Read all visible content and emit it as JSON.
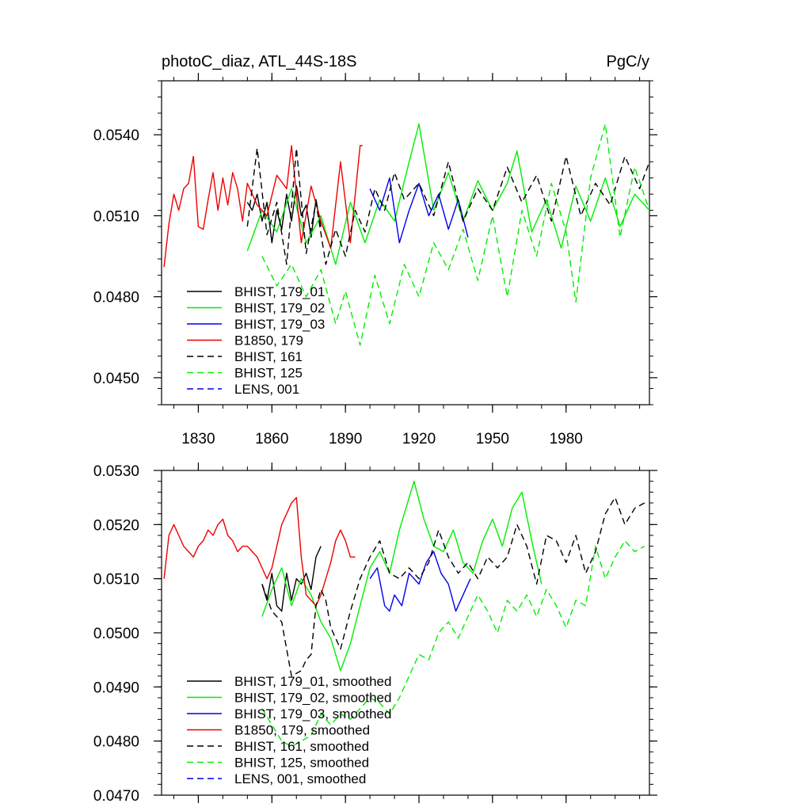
{
  "chart_data": [
    {
      "type": "line",
      "title_left": "photoC_diaz, ATL_44S-18S",
      "title_right": "PgC/y",
      "xlabel": "",
      "ylabel": "",
      "xlim": [
        1815,
        2014
      ],
      "ylim": [
        0.044,
        0.056
      ],
      "xticks": [
        1830,
        1860,
        1890,
        1920,
        1950,
        1980
      ],
      "yticks": [
        0.045,
        0.048,
        0.051,
        0.054
      ],
      "ytick_labels": [
        "0.0450",
        "0.0480",
        "0.0510",
        "0.0540"
      ],
      "xtick_labels": [
        "1830",
        "1860",
        "1890",
        "1920",
        "1950",
        "1980"
      ],
      "legend_location": "bottom-left",
      "series": [
        {
          "name": "BHIST, 179_01",
          "color": "#000000",
          "dash": false,
          "x": [
            1850,
            1852,
            1854,
            1856,
            1858,
            1860,
            1862,
            1864,
            1866,
            1868,
            1870,
            1872,
            1874,
            1876,
            1878,
            1880
          ],
          "y": [
            0.0515,
            0.0512,
            0.0518,
            0.0508,
            0.0515,
            0.05,
            0.0512,
            0.0505,
            0.0518,
            0.0508,
            0.0521,
            0.051,
            0.0514,
            0.0502,
            0.0516,
            0.0506
          ]
        },
        {
          "name": "BHIST, 179_02",
          "color": "#00ee00",
          "dash": false,
          "x": [
            1850,
            1856,
            1862,
            1868,
            1874,
            1880,
            1886,
            1892,
            1898,
            1904,
            1910,
            1916,
            1920,
            1926,
            1932,
            1938,
            1944,
            1950,
            1956,
            1960,
            1966,
            1972,
            1978,
            1984,
            1990,
            1996,
            2002,
            2008,
            2014
          ],
          "y": [
            0.0497,
            0.0512,
            0.0504,
            0.052,
            0.05,
            0.051,
            0.0492,
            0.0515,
            0.05,
            0.0516,
            0.0508,
            0.053,
            0.0544,
            0.0512,
            0.0526,
            0.0508,
            0.0523,
            0.0512,
            0.0522,
            0.0534,
            0.0504,
            0.0516,
            0.0498,
            0.0521,
            0.0508,
            0.0524,
            0.0506,
            0.0518,
            0.0512
          ]
        },
        {
          "name": "BHIST, 179_03",
          "color": "#0000ee",
          "dash": false,
          "x": [
            1900,
            1904,
            1908,
            1912,
            1916,
            1920,
            1924,
            1928,
            1932,
            1936,
            1940
          ],
          "y": [
            0.052,
            0.0512,
            0.0524,
            0.05,
            0.0512,
            0.0522,
            0.051,
            0.0518,
            0.0505,
            0.0516,
            0.0502
          ]
        },
        {
          "name": "B1850, 179",
          "color": "#ee0000",
          "dash": false,
          "x": [
            1816,
            1818,
            1820,
            1822,
            1824,
            1826,
            1828,
            1830,
            1832,
            1834,
            1836,
            1838,
            1840,
            1842,
            1844,
            1846,
            1848,
            1850,
            1854,
            1858,
            1862,
            1866,
            1868,
            1872,
            1876,
            1880,
            1884,
            1888,
            1892,
            1896,
            1897
          ],
          "y": [
            0.0491,
            0.0507,
            0.0518,
            0.0512,
            0.052,
            0.0522,
            0.0532,
            0.0506,
            0.0505,
            0.0516,
            0.0526,
            0.0512,
            0.0524,
            0.0514,
            0.0526,
            0.052,
            0.0508,
            0.0522,
            0.0514,
            0.051,
            0.0525,
            0.052,
            0.0536,
            0.05,
            0.0521,
            0.0508,
            0.0498,
            0.053,
            0.05,
            0.0536,
            0.0536
          ]
        },
        {
          "name": "BHIST, 161",
          "color": "#000000",
          "dash": true,
          "x": [
            1850,
            1854,
            1858,
            1862,
            1866,
            1870,
            1874,
            1878,
            1882,
            1886,
            1890,
            1894,
            1898,
            1902,
            1906,
            1910,
            1914,
            1920,
            1926,
            1932,
            1938,
            1944,
            1950,
            1956,
            1962,
            1968,
            1974,
            1980,
            1986,
            1992,
            1998,
            2004,
            2010,
            2014
          ],
          "y": [
            0.0506,
            0.0535,
            0.0503,
            0.0515,
            0.0492,
            0.0535,
            0.0496,
            0.0515,
            0.0492,
            0.0505,
            0.0495,
            0.0512,
            0.0504,
            0.052,
            0.0512,
            0.0526,
            0.0516,
            0.0522,
            0.051,
            0.053,
            0.0508,
            0.052,
            0.0512,
            0.0528,
            0.0515,
            0.0525,
            0.0508,
            0.0532,
            0.051,
            0.0522,
            0.0514,
            0.0532,
            0.052,
            0.053
          ]
        },
        {
          "name": "BHIST, 125",
          "color": "#00ee00",
          "dash": true,
          "x": [
            1856,
            1862,
            1868,
            1874,
            1880,
            1886,
            1890,
            1896,
            1902,
            1908,
            1914,
            1920,
            1926,
            1932,
            1938,
            1944,
            1950,
            1956,
            1962,
            1968,
            1974,
            1980,
            1984,
            1990,
            1996,
            2002,
            2008,
            2014
          ],
          "y": [
            0.0495,
            0.0484,
            0.0492,
            0.048,
            0.049,
            0.047,
            0.0482,
            0.0462,
            0.0488,
            0.047,
            0.0492,
            0.048,
            0.05,
            0.049,
            0.0505,
            0.0486,
            0.051,
            0.048,
            0.0512,
            0.0495,
            0.0522,
            0.0504,
            0.0478,
            0.0524,
            0.0544,
            0.0502,
            0.0528,
            0.0512
          ]
        },
        {
          "name": "LENS, 001",
          "color": "#0000ee",
          "dash": true,
          "x": [],
          "y": []
        }
      ]
    },
    {
      "type": "line",
      "title_left": "",
      "title_right": "",
      "xlabel": "",
      "ylabel": "",
      "xlim": [
        1815,
        2014
      ],
      "ylim": [
        0.047,
        0.053
      ],
      "yticks": [
        0.047,
        0.048,
        0.049,
        0.05,
        0.051,
        0.052,
        0.053
      ],
      "ytick_labels": [
        "0.0470",
        "0.0480",
        "0.0490",
        "0.0500",
        "0.0510",
        "0.0520",
        "0.0530"
      ],
      "legend_location": "bottom-left",
      "series": [
        {
          "name": "BHIST, 179_01, smoothed",
          "color": "#000000",
          "dash": false,
          "x": [
            1856,
            1858,
            1860,
            1862,
            1864,
            1866,
            1868,
            1870,
            1872,
            1874,
            1876,
            1878,
            1880
          ],
          "y": [
            0.0509,
            0.0506,
            0.0511,
            0.0505,
            0.0504,
            0.0511,
            0.0506,
            0.051,
            0.0509,
            0.0511,
            0.0508,
            0.0514,
            0.0516
          ]
        },
        {
          "name": "BHIST, 179_02, smoothed",
          "color": "#00ee00",
          "dash": false,
          "x": [
            1856,
            1860,
            1864,
            1868,
            1872,
            1876,
            1880,
            1884,
            1888,
            1892,
            1896,
            1900,
            1904,
            1908,
            1912,
            1916,
            1918,
            1922,
            1926,
            1930,
            1934,
            1938,
            1942,
            1946,
            1950,
            1954,
            1958,
            1962,
            1966,
            1970
          ],
          "y": [
            0.0503,
            0.0508,
            0.0512,
            0.0505,
            0.051,
            0.0507,
            0.0502,
            0.0499,
            0.0493,
            0.0498,
            0.0505,
            0.0512,
            0.0515,
            0.0511,
            0.0519,
            0.0525,
            0.0528,
            0.0521,
            0.0516,
            0.0515,
            0.0519,
            0.0513,
            0.0511,
            0.0517,
            0.0521,
            0.0516,
            0.0523,
            0.0526,
            0.0517,
            0.0509
          ]
        },
        {
          "name": "BHIST, 179_03, smoothed",
          "color": "#0000ee",
          "dash": false,
          "x": [
            1900,
            1903,
            1906,
            1908,
            1910,
            1913,
            1916,
            1920,
            1923,
            1926,
            1929,
            1932,
            1935,
            1938,
            1941
          ],
          "y": [
            0.051,
            0.0512,
            0.0505,
            0.0504,
            0.0507,
            0.0505,
            0.0511,
            0.0509,
            0.0513,
            0.0515,
            0.0511,
            0.0509,
            0.0504,
            0.0507,
            0.051
          ]
        },
        {
          "name": "B1850, 179, smoothed",
          "color": "#ee0000",
          "dash": false,
          "x": [
            1816,
            1818,
            1820,
            1822,
            1824,
            1826,
            1828,
            1830,
            1832,
            1834,
            1836,
            1838,
            1840,
            1842,
            1844,
            1846,
            1848,
            1850,
            1852,
            1854,
            1856,
            1858,
            1860,
            1862,
            1864,
            1866,
            1868,
            1870,
            1872,
            1874,
            1876,
            1878,
            1880,
            1882,
            1884,
            1886,
            1888,
            1890,
            1892,
            1894
          ],
          "y": [
            0.051,
            0.0518,
            0.052,
            0.0518,
            0.0516,
            0.0515,
            0.0514,
            0.0516,
            0.0517,
            0.0519,
            0.0518,
            0.052,
            0.0521,
            0.0518,
            0.0517,
            0.0515,
            0.0516,
            0.0516,
            0.0515,
            0.0514,
            0.0512,
            0.051,
            0.0512,
            0.0516,
            0.052,
            0.0522,
            0.0524,
            0.0525,
            0.0514,
            0.0507,
            0.0506,
            0.0505,
            0.0507,
            0.051,
            0.0513,
            0.0517,
            0.0519,
            0.0517,
            0.0514,
            0.0514
          ]
        },
        {
          "name": "BHIST, 161, smoothed",
          "color": "#000000",
          "dash": true,
          "x": [
            1856,
            1860,
            1864,
            1868,
            1872,
            1874,
            1876,
            1878,
            1880,
            1882,
            1884,
            1888,
            1892,
            1896,
            1900,
            1904,
            1908,
            1912,
            1916,
            1920,
            1924,
            1928,
            1932,
            1936,
            1940,
            1944,
            1948,
            1952,
            1956,
            1960,
            1964,
            1968,
            1972,
            1976,
            1980,
            1984,
            1988,
            1992,
            1996,
            2000,
            2004,
            2008,
            2012
          ],
          "y": [
            0.0509,
            0.0504,
            0.0502,
            0.0492,
            0.0493,
            0.0495,
            0.0496,
            0.0505,
            0.0508,
            0.0506,
            0.0501,
            0.0497,
            0.0504,
            0.051,
            0.0514,
            0.0517,
            0.0511,
            0.051,
            0.0512,
            0.051,
            0.0513,
            0.0519,
            0.0514,
            0.0511,
            0.0513,
            0.051,
            0.0514,
            0.0512,
            0.0514,
            0.052,
            0.0516,
            0.0509,
            0.0518,
            0.0517,
            0.0513,
            0.0518,
            0.0511,
            0.0515,
            0.0522,
            0.0525,
            0.052,
            0.0523,
            0.0524
          ]
        },
        {
          "name": "BHIST, 125, smoothed",
          "color": "#00ee00",
          "dash": true,
          "x": [
            1856,
            1860,
            1864,
            1868,
            1872,
            1876,
            1880,
            1884,
            1888,
            1892,
            1896,
            1900,
            1904,
            1908,
            1912,
            1916,
            1920,
            1924,
            1928,
            1932,
            1936,
            1940,
            1944,
            1948,
            1952,
            1956,
            1960,
            1964,
            1968,
            1972,
            1976,
            1980,
            1984,
            1988,
            1992,
            1996,
            2000,
            2004,
            2008,
            2012
          ],
          "y": [
            0.0486,
            0.0483,
            0.048,
            0.0479,
            0.048,
            0.0481,
            0.0485,
            0.0483,
            0.0485,
            0.0484,
            0.0486,
            0.0488,
            0.0487,
            0.0485,
            0.0488,
            0.0492,
            0.0496,
            0.0495,
            0.05,
            0.0502,
            0.0499,
            0.0503,
            0.0507,
            0.0504,
            0.05,
            0.0506,
            0.0504,
            0.0507,
            0.0503,
            0.0508,
            0.0505,
            0.0501,
            0.0506,
            0.0505,
            0.0516,
            0.051,
            0.0514,
            0.0517,
            0.0515,
            0.0516
          ]
        },
        {
          "name": "LENS, 001, smoothed",
          "color": "#0000ee",
          "dash": true,
          "x": [],
          "y": []
        }
      ]
    }
  ]
}
